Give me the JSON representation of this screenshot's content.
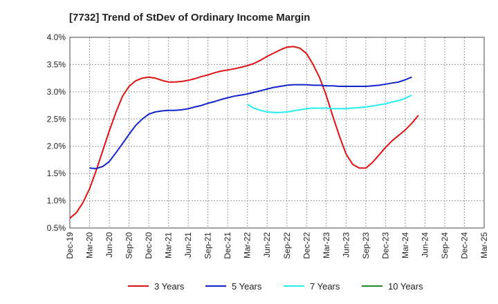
{
  "chart_data": {
    "type": "line",
    "title": "[7732]  Trend of StDev of Ordinary Income Margin",
    "xlabel": "",
    "ylabel": "",
    "x_ticks": [
      "Dec-19",
      "Mar-20",
      "Jun-20",
      "Sep-20",
      "Dec-20",
      "Mar-21",
      "Jun-21",
      "Sep-21",
      "Dec-21",
      "Mar-22",
      "Jun-22",
      "Sep-22",
      "Dec-22",
      "Mar-23",
      "Jun-23",
      "Sep-23",
      "Dec-23",
      "Mar-24",
      "Jun-24",
      "Sep-24",
      "Dec-24",
      "Mar-25"
    ],
    "y_ticks": [
      "0.5%",
      "1.0%",
      "1.5%",
      "2.0%",
      "2.5%",
      "3.0%",
      "3.5%",
      "4.0%"
    ],
    "ylim": [
      0.5,
      4.0
    ],
    "grid": true,
    "legend_position": "bottom",
    "series": [
      {
        "name": "3 Years",
        "color": "#dd1111",
        "points": [
          [
            0,
            0.68
          ],
          [
            0.33,
            0.78
          ],
          [
            0.67,
            0.97
          ],
          [
            1,
            1.22
          ],
          [
            1.33,
            1.55
          ],
          [
            1.67,
            1.92
          ],
          [
            2,
            2.28
          ],
          [
            2.33,
            2.62
          ],
          [
            2.67,
            2.92
          ],
          [
            3,
            3.1
          ],
          [
            3.33,
            3.2
          ],
          [
            3.67,
            3.25
          ],
          [
            4,
            3.27
          ],
          [
            4.33,
            3.25
          ],
          [
            4.67,
            3.21
          ],
          [
            5,
            3.18
          ],
          [
            5.33,
            3.18
          ],
          [
            5.67,
            3.19
          ],
          [
            6,
            3.21
          ],
          [
            6.33,
            3.24
          ],
          [
            6.67,
            3.28
          ],
          [
            7,
            3.31
          ],
          [
            7.33,
            3.35
          ],
          [
            7.67,
            3.38
          ],
          [
            8,
            3.4
          ],
          [
            8.33,
            3.42
          ],
          [
            8.67,
            3.45
          ],
          [
            9,
            3.48
          ],
          [
            9.33,
            3.52
          ],
          [
            9.67,
            3.58
          ],
          [
            10,
            3.65
          ],
          [
            10.33,
            3.71
          ],
          [
            10.67,
            3.77
          ],
          [
            11,
            3.82
          ],
          [
            11.33,
            3.83
          ],
          [
            11.67,
            3.8
          ],
          [
            12,
            3.7
          ],
          [
            12.33,
            3.5
          ],
          [
            12.67,
            3.25
          ],
          [
            13,
            2.93
          ],
          [
            13.33,
            2.55
          ],
          [
            13.67,
            2.18
          ],
          [
            14,
            1.86
          ],
          [
            14.33,
            1.67
          ],
          [
            14.67,
            1.6
          ],
          [
            15,
            1.6
          ],
          [
            15.33,
            1.7
          ],
          [
            15.67,
            1.84
          ],
          [
            16,
            1.98
          ],
          [
            16.33,
            2.1
          ],
          [
            16.67,
            2.2
          ],
          [
            17,
            2.3
          ],
          [
            17.33,
            2.42
          ],
          [
            17.67,
            2.57
          ]
        ]
      },
      {
        "name": "5 Years",
        "color": "#1122cc",
        "points": [
          [
            1,
            1.6
          ],
          [
            1.33,
            1.59
          ],
          [
            1.67,
            1.63
          ],
          [
            2,
            1.72
          ],
          [
            2.33,
            1.88
          ],
          [
            2.67,
            2.05
          ],
          [
            3,
            2.22
          ],
          [
            3.33,
            2.38
          ],
          [
            3.67,
            2.5
          ],
          [
            4,
            2.59
          ],
          [
            4.33,
            2.63
          ],
          [
            4.67,
            2.65
          ],
          [
            5,
            2.66
          ],
          [
            5.33,
            2.66
          ],
          [
            5.67,
            2.67
          ],
          [
            6,
            2.69
          ],
          [
            6.33,
            2.72
          ],
          [
            6.67,
            2.75
          ],
          [
            7,
            2.79
          ],
          [
            7.33,
            2.82
          ],
          [
            7.67,
            2.86
          ],
          [
            8,
            2.89
          ],
          [
            8.33,
            2.92
          ],
          [
            8.67,
            2.94
          ],
          [
            9,
            2.96
          ],
          [
            9.33,
            2.99
          ],
          [
            9.67,
            3.02
          ],
          [
            10,
            3.05
          ],
          [
            10.33,
            3.08
          ],
          [
            10.67,
            3.1
          ],
          [
            11,
            3.12
          ],
          [
            11.33,
            3.13
          ],
          [
            11.67,
            3.13
          ],
          [
            12,
            3.13
          ],
          [
            12.33,
            3.12
          ],
          [
            12.67,
            3.12
          ],
          [
            13,
            3.11
          ],
          [
            13.33,
            3.11
          ],
          [
            13.67,
            3.1
          ],
          [
            14,
            3.1
          ],
          [
            14.33,
            3.1
          ],
          [
            14.67,
            3.1
          ],
          [
            15,
            3.1
          ],
          [
            15.33,
            3.11
          ],
          [
            15.67,
            3.12
          ],
          [
            16,
            3.14
          ],
          [
            16.33,
            3.16
          ],
          [
            16.67,
            3.18
          ],
          [
            17,
            3.22
          ],
          [
            17.33,
            3.27
          ]
        ]
      },
      {
        "name": "7 Years",
        "color": "#22eeee",
        "points": [
          [
            9,
            2.77
          ],
          [
            9.33,
            2.7
          ],
          [
            9.67,
            2.66
          ],
          [
            10,
            2.63
          ],
          [
            10.33,
            2.62
          ],
          [
            10.67,
            2.62
          ],
          [
            11,
            2.63
          ],
          [
            11.33,
            2.65
          ],
          [
            11.67,
            2.67
          ],
          [
            12,
            2.69
          ],
          [
            12.33,
            2.7
          ],
          [
            12.67,
            2.7
          ],
          [
            13,
            2.7
          ],
          [
            13.33,
            2.69
          ],
          [
            13.67,
            2.69
          ],
          [
            14,
            2.69
          ],
          [
            14.33,
            2.7
          ],
          [
            14.67,
            2.71
          ],
          [
            15,
            2.72
          ],
          [
            15.33,
            2.74
          ],
          [
            15.67,
            2.76
          ],
          [
            16,
            2.78
          ],
          [
            16.33,
            2.81
          ],
          [
            16.67,
            2.84
          ],
          [
            17,
            2.88
          ],
          [
            17.33,
            2.94
          ]
        ]
      },
      {
        "name": "10 Years",
        "color": "#228822",
        "points": []
      }
    ]
  }
}
